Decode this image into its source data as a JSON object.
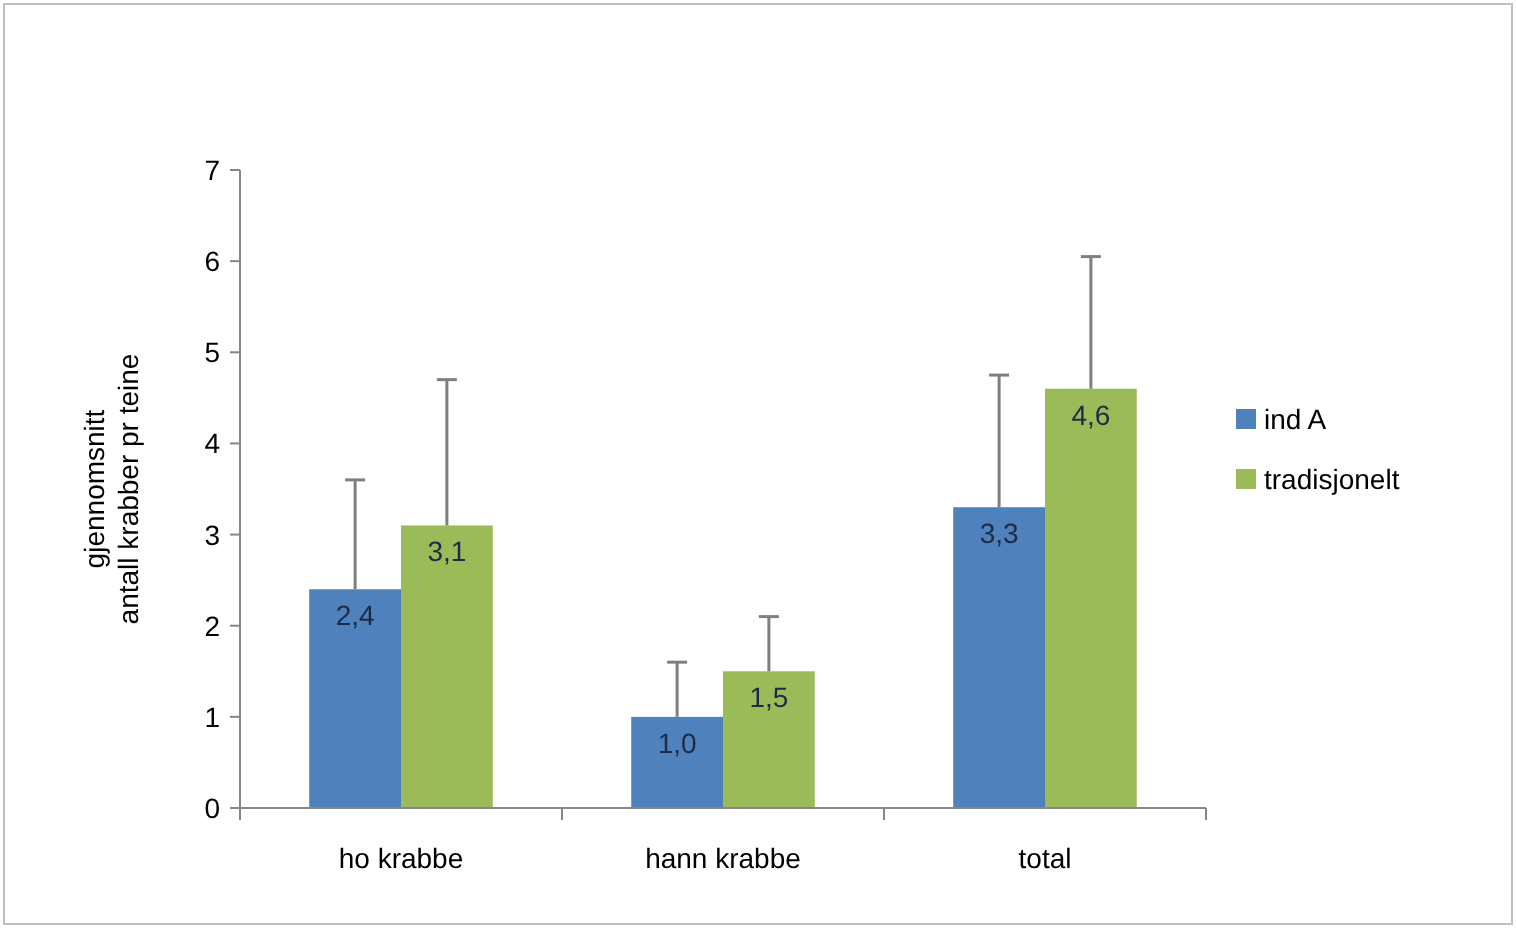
{
  "chart_data": {
    "type": "bar",
    "ylabel": "gjennomsnitt\nantall krabber pr teine",
    "categories": [
      "ho krabbe",
      "hann krabbe",
      "total"
    ],
    "series": [
      {
        "name": "ind A",
        "color": "#4f81bd",
        "values": [
          2.4,
          1.0,
          3.3
        ],
        "value_labels": [
          "2,4",
          "1,0",
          "3,3"
        ],
        "errors": [
          [
            2.4,
            3.6
          ],
          [
            1.0,
            1.6
          ],
          [
            3.3,
            4.75
          ]
        ]
      },
      {
        "name": "tradisjonelt",
        "color": "#9bbb59",
        "values": [
          3.1,
          1.5,
          4.6
        ],
        "value_labels": [
          "3,1",
          "1,5",
          "4,6"
        ],
        "errors": [
          [
            3.1,
            4.7
          ],
          [
            1.5,
            2.1
          ],
          [
            4.6,
            6.05
          ]
        ]
      }
    ],
    "ylim": [
      0,
      7
    ],
    "yticks": [
      0,
      1,
      2,
      3,
      4,
      5,
      6,
      7
    ],
    "legend": "right",
    "grid": false
  }
}
